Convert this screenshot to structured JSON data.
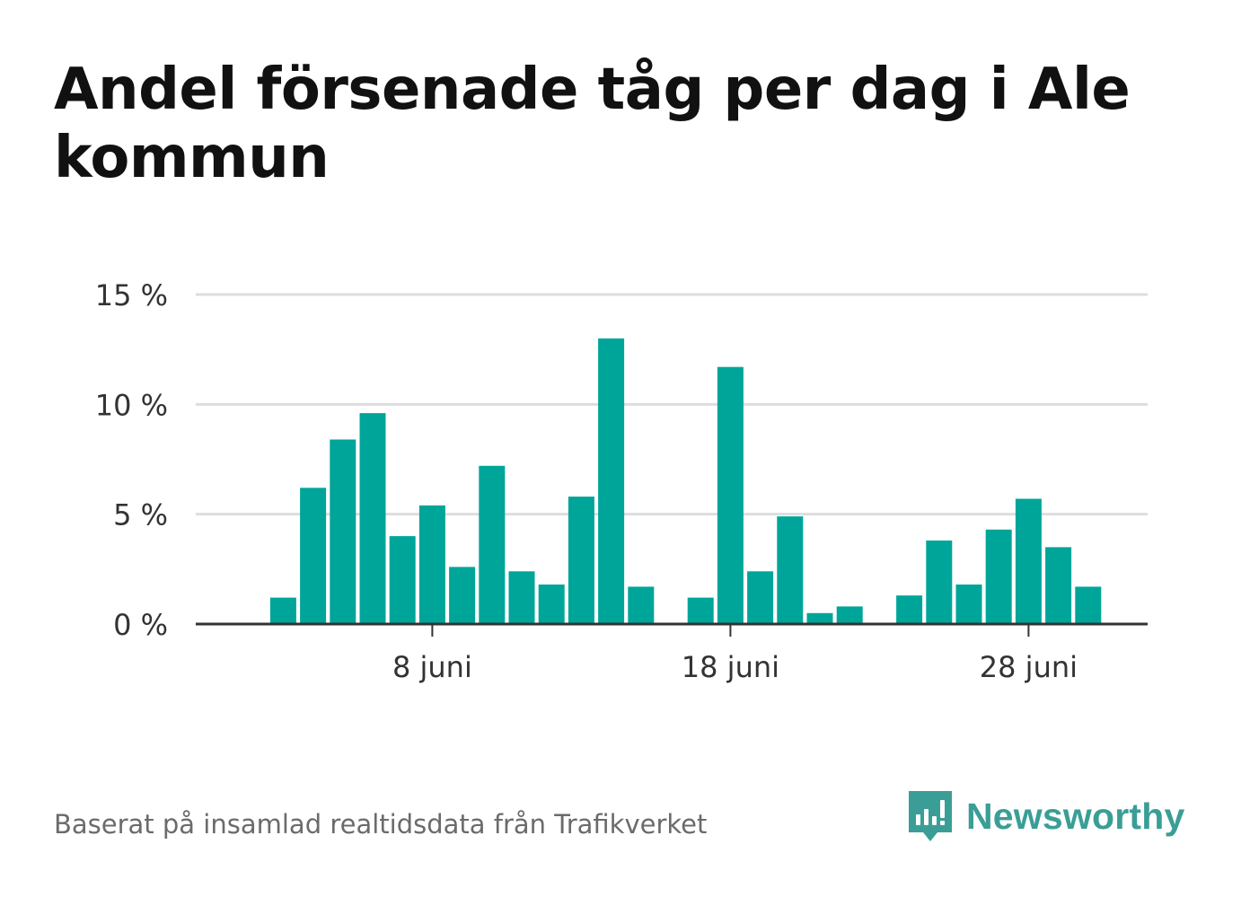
{
  "chart_data": {
    "type": "bar",
    "title": "Andel försenade tåg per dag i Ale kommun",
    "x_start": "2020-06-01",
    "x_end": "2020-06-30",
    "x_ticks": [
      {
        "date": "2020-06-08",
        "label": "8 juni"
      },
      {
        "date": "2020-06-18",
        "label": "18 juni"
      },
      {
        "date": "2020-06-28",
        "label": "28 juni"
      }
    ],
    "y_ticks": [
      {
        "value": 0,
        "label": "0 %"
      },
      {
        "value": 5,
        "label": "5 %"
      },
      {
        "value": 10,
        "label": "10 %"
      },
      {
        "value": 15,
        "label": "15 %"
      }
    ],
    "ylim": [
      0,
      15
    ],
    "grid": true,
    "bar_color": "#00a599",
    "series": [
      {
        "values": [
          {
            "date": "2020-06-03",
            "value": 1.2
          },
          {
            "date": "2020-06-04",
            "value": 6.2
          },
          {
            "date": "2020-06-05",
            "value": 8.4
          },
          {
            "date": "2020-06-06",
            "value": 9.6
          },
          {
            "date": "2020-06-07",
            "value": 4.0
          },
          {
            "date": "2020-06-08",
            "value": 5.4
          },
          {
            "date": "2020-06-09",
            "value": 2.6
          },
          {
            "date": "2020-06-10",
            "value": 7.2
          },
          {
            "date": "2020-06-11",
            "value": 2.4
          },
          {
            "date": "2020-06-12",
            "value": 1.8
          },
          {
            "date": "2020-06-13",
            "value": 5.8
          },
          {
            "date": "2020-06-14",
            "value": 13.0
          },
          {
            "date": "2020-06-15",
            "value": 1.7
          },
          {
            "date": "2020-06-17",
            "value": 1.2
          },
          {
            "date": "2020-06-18",
            "value": 11.7
          },
          {
            "date": "2020-06-19",
            "value": 2.4
          },
          {
            "date": "2020-06-20",
            "value": 4.9
          },
          {
            "date": "2020-06-21",
            "value": 0.5
          },
          {
            "date": "2020-06-22",
            "value": 0.8
          },
          {
            "date": "2020-06-24",
            "value": 1.3
          },
          {
            "date": "2020-06-25",
            "value": 3.8
          },
          {
            "date": "2020-06-26",
            "value": 1.8
          },
          {
            "date": "2020-06-27",
            "value": 4.3
          },
          {
            "date": "2020-06-28",
            "value": 5.7
          },
          {
            "date": "2020-06-29",
            "value": 3.5
          },
          {
            "date": "2020-06-30",
            "value": 1.7
          }
        ]
      }
    ]
  },
  "source_text": "Baserat på insamlad realtidsdata från Trafikverket",
  "brand": {
    "name": "Newsworthy",
    "icon": "newsworthy-logo-icon",
    "color": "#3a9e96"
  }
}
